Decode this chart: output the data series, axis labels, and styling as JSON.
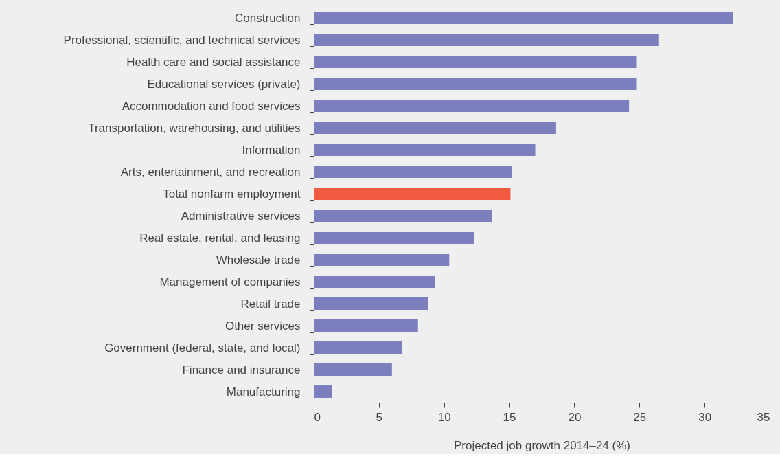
{
  "chart_data": {
    "type": "bar",
    "orientation": "horizontal",
    "xlabel": "Projected job growth 2014–24 (%)",
    "categories": [
      "Construction",
      "Professional, scientific, and technical services",
      "Health care and social assistance",
      "Educational services (private)",
      "Accommodation and food services",
      "Transportation, warehousing, and utilities",
      "Information",
      "Arts, entertainment, and recreation",
      "Total nonfarm employment",
      "Administrative services",
      "Real estate, rental, and leasing",
      "Wholesale trade",
      "Management of companies",
      "Retail trade",
      "Other services",
      "Government (federal, state, and local)",
      "Finance and insurance",
      "Manufacturing"
    ],
    "values": [
      32.2,
      26.5,
      24.8,
      24.8,
      24.2,
      18.6,
      17.0,
      15.2,
      15.1,
      13.7,
      12.3,
      10.4,
      9.3,
      8.8,
      8.0,
      6.8,
      6.0,
      1.4
    ],
    "colors": [
      "#7b7fbe",
      "#7b7fbe",
      "#7b7fbe",
      "#7b7fbe",
      "#7b7fbe",
      "#7b7fbe",
      "#7b7fbe",
      "#7b7fbe",
      "#f15a40",
      "#7b7fbe",
      "#7b7fbe",
      "#7b7fbe",
      "#7b7fbe",
      "#7b7fbe",
      "#7b7fbe",
      "#7b7fbe",
      "#7b7fbe",
      "#7b7fbe"
    ],
    "xlim": [
      0,
      35
    ],
    "xticks": [
      0,
      5,
      10,
      15,
      20,
      25,
      30,
      35
    ]
  }
}
